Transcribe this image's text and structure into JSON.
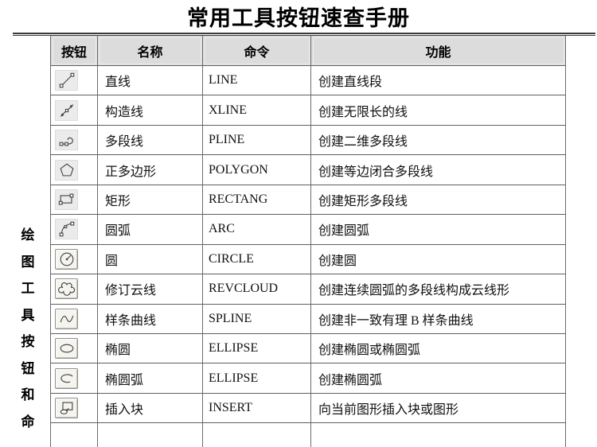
{
  "colors": {
    "header_bg": "#dcdcdc",
    "grid_line": "#6b6b6b",
    "rule_line": "#3a3a3a",
    "icon_stroke": "#404040"
  },
  "page": {
    "title": "常用工具按钮速查手册"
  },
  "side_label": {
    "text": "绘图工具按钮和命",
    "chars": [
      "绘",
      "图",
      "工",
      "具",
      "按",
      "钮",
      "和",
      "命"
    ]
  },
  "table": {
    "headers": [
      {
        "key": "button",
        "label": "按钮"
      },
      {
        "key": "name",
        "label": "名称"
      },
      {
        "key": "command",
        "label": "命令"
      },
      {
        "key": "function",
        "label": "功能"
      }
    ],
    "rows": [
      {
        "icon": "line-icon",
        "button_style": "flat",
        "name": "直线",
        "command": "LINE",
        "function": "创建直线段"
      },
      {
        "icon": "xline-icon",
        "button_style": "flat",
        "name": "构造线",
        "command": "XLINE",
        "function": "创建无限长的线"
      },
      {
        "icon": "pline-icon",
        "button_style": "flat",
        "name": "多段线",
        "command": "PLINE",
        "function": "创建二维多段线"
      },
      {
        "icon": "polygon-icon",
        "button_style": "flat",
        "name": "正多边形",
        "command": "POLYGON",
        "function": "创建等边闭合多段线"
      },
      {
        "icon": "rectangle-icon",
        "button_style": "flat",
        "name": "矩形",
        "command": "RECTANG",
        "function": "创建矩形多段线"
      },
      {
        "icon": "arc-icon",
        "button_style": "flat",
        "name": "圆弧",
        "command": "ARC",
        "function": "创建圆弧"
      },
      {
        "icon": "circle-icon",
        "button_style": "raised",
        "name": "圆",
        "command": "CIRCLE",
        "function": "创建圆"
      },
      {
        "icon": "revcloud-icon",
        "button_style": "raised",
        "name": "修订云线",
        "command": "REVCLOUD",
        "function": "创建连续圆弧的多段线构成云线形"
      },
      {
        "icon": "spline-icon",
        "button_style": "raised",
        "name": "样条曲线",
        "command": "SPLINE",
        "function": "创建非一致有理 B 样条曲线"
      },
      {
        "icon": "ellipse-icon",
        "button_style": "raised",
        "name": "椭圆",
        "command": "ELLIPSE",
        "function": "创建椭圆或椭圆弧"
      },
      {
        "icon": "ellipse-arc-icon",
        "button_style": "raised",
        "name": "椭圆弧",
        "command": "ELLIPSE",
        "function": "创建椭圆弧"
      },
      {
        "icon": "insert-block-icon",
        "button_style": "raised",
        "name": "插入块",
        "command": "INSERT",
        "function": "向当前图形插入块或图形"
      }
    ]
  }
}
